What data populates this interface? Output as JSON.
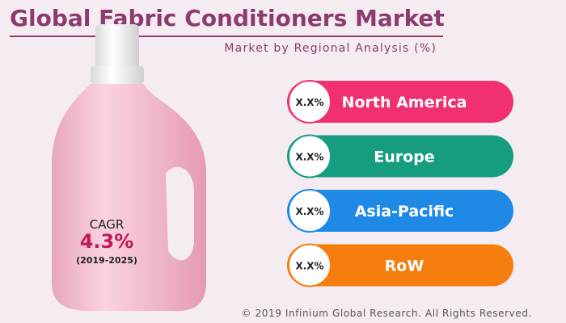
{
  "header": {
    "title": "Global Fabric Conditioners Market",
    "subtitle": "Market by Regional Analysis (%)"
  },
  "cagr": {
    "label": "CAGR",
    "value": "4.3%",
    "period": "(2019-2025)"
  },
  "regions": [
    {
      "value": "X.X%",
      "label": "North America"
    },
    {
      "value": "X.X%",
      "label": "Europe"
    },
    {
      "value": "X.X%",
      "label": "Asia-Pacific"
    },
    {
      "value": "X.X%",
      "label": "RoW"
    }
  ],
  "footer": "© 2019 Infinium Global Research. All Rights Reserved."
}
